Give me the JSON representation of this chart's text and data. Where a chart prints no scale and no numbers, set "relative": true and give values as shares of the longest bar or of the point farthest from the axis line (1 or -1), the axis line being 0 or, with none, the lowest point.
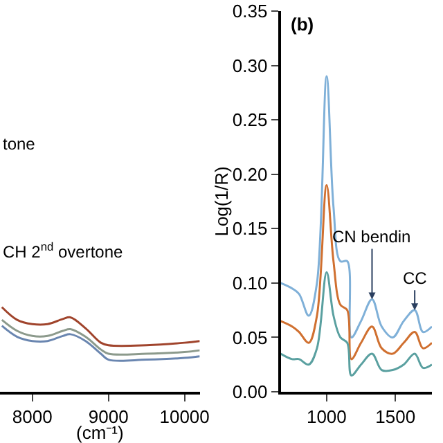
{
  "chart_data": [
    {
      "type": "line",
      "relative": true,
      "xlabel": "(cm⁻¹)",
      "x": [
        7600,
        7800,
        8000,
        8200,
        8400,
        8500,
        8700,
        8900,
        9000,
        9500,
        10000,
        10200
      ],
      "xlim": [
        7575,
        10200
      ],
      "xticks": [
        8000,
        9000,
        10000
      ],
      "annotations": [
        {
          "text": "tone"
        },
        "CH 2$^{nd}$ overtone"
      ],
      "series": [
        {
          "color": "#a0442c",
          "values": [
            1,
            0.85,
            0.8,
            0.8,
            0.86,
            0.88,
            0.75,
            0.58,
            0.55,
            0.55,
            0.58,
            0.6
          ]
        },
        {
          "color": "#8c9a8c",
          "values": [
            0.85,
            0.72,
            0.66,
            0.66,
            0.72,
            0.74,
            0.65,
            0.5,
            0.45,
            0.45,
            0.47,
            0.49
          ]
        },
        {
          "color": "#6a86b0",
          "values": [
            0.78,
            0.65,
            0.6,
            0.6,
            0.66,
            0.68,
            0.6,
            0.45,
            0.38,
            0.38,
            0.4,
            0.42
          ]
        }
      ]
    },
    {
      "type": "line",
      "title": "(b)",
      "ylabel": "Log(1/R)",
      "x": [
        667,
        750,
        800,
        870,
        930,
        1000,
        1050,
        1100,
        1150,
        1180,
        1250,
        1330,
        1400,
        1480,
        1560,
        1640,
        1700,
        1765
      ],
      "xlim": [
        667,
        1765
      ],
      "xticks": [
        1000,
        1500
      ],
      "ylim": [
        0,
        0.35
      ],
      "yticks": [
        {
          "value": 0,
          "label": "0.00"
        },
        {
          "value": 0.05,
          "label": "0.05"
        },
        {
          "value": 0.1,
          "label": "0.10"
        },
        {
          "value": 0.15,
          "label": "0.15"
        },
        {
          "value": 0.2,
          "label": "0.20"
        },
        {
          "value": 0.25,
          "label": "0.25"
        },
        {
          "value": 0.3,
          "label": "0.30"
        },
        {
          "value": 0.35,
          "label": "0.35"
        }
      ],
      "annotations": [
        {
          "text": "CN bendin",
          "x": 1330,
          "y": 0.085
        },
        {
          "text": "CC",
          "x": 1640,
          "y": 0.075
        }
      ],
      "series": [
        {
          "color": "#7fb0d8",
          "values": [
            0.1,
            0.095,
            0.09,
            0.07,
            0.1,
            0.29,
            0.17,
            0.12,
            0.12,
            0.05,
            0.065,
            0.085,
            0.06,
            0.05,
            0.065,
            0.075,
            0.055,
            0.06
          ]
        },
        {
          "color": "#d07030",
          "values": [
            0.065,
            0.06,
            0.055,
            0.045,
            0.07,
            0.19,
            0.12,
            0.08,
            0.075,
            0.03,
            0.045,
            0.06,
            0.04,
            0.035,
            0.045,
            0.055,
            0.04,
            0.045
          ]
        },
        {
          "color": "#5aa0a0",
          "values": [
            0.035,
            0.03,
            0.03,
            0.025,
            0.04,
            0.11,
            0.07,
            0.05,
            0.045,
            0.015,
            0.025,
            0.035,
            0.02,
            0.02,
            0.025,
            0.035,
            0.022,
            0.025
          ]
        }
      ]
    }
  ]
}
